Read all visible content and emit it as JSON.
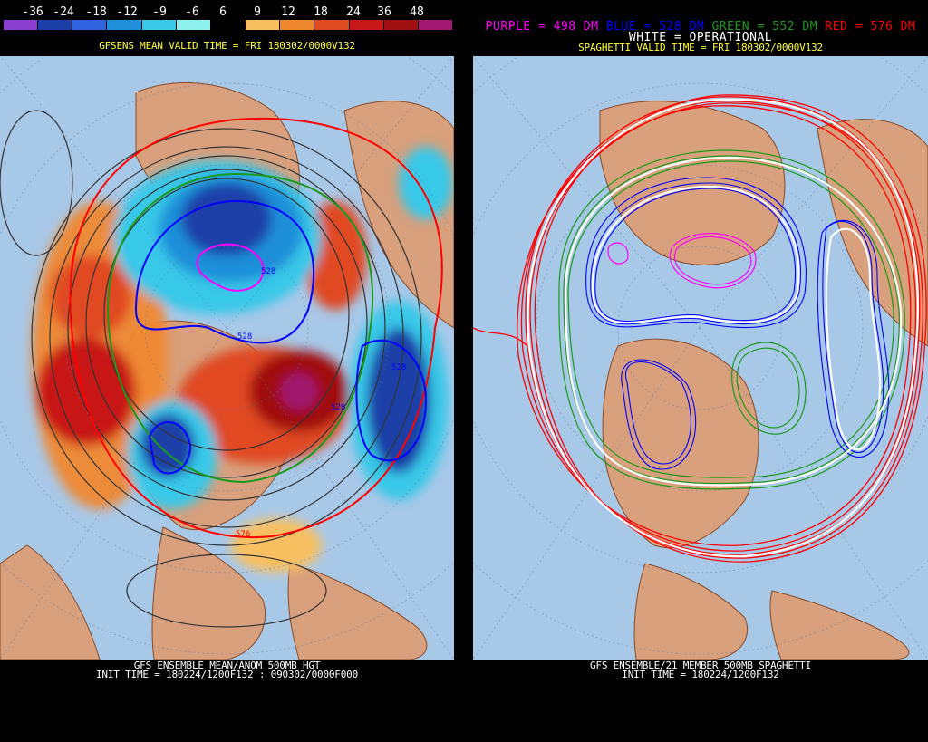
{
  "left_panel": {
    "colorbar": {
      "labels": [
        "-36",
        "-24",
        "-18",
        "-12",
        "-9",
        "-6",
        "6",
        "9",
        "12",
        "18",
        "24",
        "36",
        "48"
      ],
      "colors": [
        "#8a3fd0",
        "#1a3fa8",
        "#2f63e0",
        "#1e8fd8",
        "#39c8e8",
        "#8ff0f0",
        "#ffffff",
        "#f8c060",
        "#f08830",
        "#e04a20",
        "#c81818",
        "#a01010",
        "#a01870"
      ]
    },
    "valid_time": "GFSENS MEAN VALID TIME = FRI 180302/0000V132",
    "footer_line1": "GFS ENSEMBLE MEAN/ANOM 500MB HGT",
    "footer_line2": "INIT TIME = 180224/1200F132 : 090302/0000F000",
    "contour_labels": [
      "528",
      "528",
      "528",
      "528",
      "576"
    ]
  },
  "right_panel": {
    "legend": {
      "purple": "PURPLE = 498 DM",
      "blue": "BLUE = 528 DM",
      "green": "GREEN = 552 DM",
      "red": "RED = 576 DM",
      "white": "WHITE = OPERATIONAL"
    },
    "valid_time": "SPAGHETTI VALID TIME = FRI 180302/0000V132",
    "footer_line1": "GFS ENSEMBLE/21 MEMBER 500MB SPAGHETTI",
    "footer_line2": "INIT TIME = 180224/1200F132"
  },
  "colors": {
    "ocean": "#a8c8e8",
    "land": "#d8a07c",
    "border": "#8a4a28",
    "purple": "#ff00ff",
    "blue": "#0000ff",
    "green": "#1a9a1a",
    "red": "#ff0000",
    "white": "#ffffff",
    "yellow": "#ffff33"
  }
}
